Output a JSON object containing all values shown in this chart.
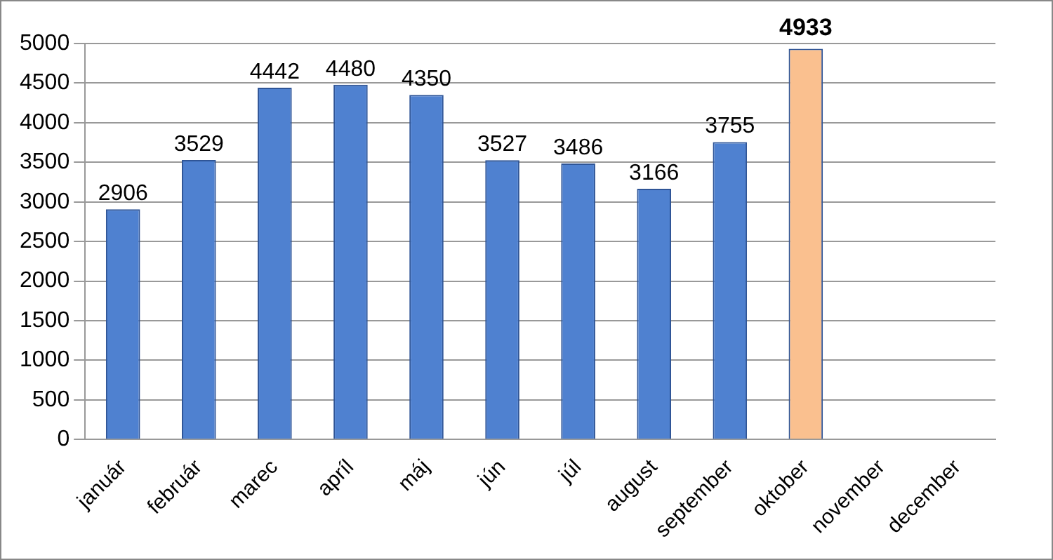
{
  "chart_data": {
    "type": "bar",
    "categories": [
      "január",
      "február",
      "marec",
      "apríl",
      "máj",
      "jún",
      "júl",
      "august",
      "september",
      "oktober",
      "november",
      "december"
    ],
    "values": [
      2906,
      3529,
      4442,
      4480,
      4350,
      3527,
      3486,
      3166,
      3755,
      4933,
      null,
      null
    ],
    "colors": [
      "#4f81d0",
      "#4f81d0",
      "#4f81d0",
      "#4f81d0",
      "#4f81d0",
      "#4f81d0",
      "#4f81d0",
      "#4f81d0",
      "#4f81d0",
      "#fac08f",
      "#4f81d0",
      "#4f81d0"
    ],
    "ylim": [
      0,
      5000
    ],
    "yticks": [
      0,
      500,
      1000,
      1500,
      2000,
      2500,
      3000,
      3500,
      4000,
      4500,
      5000
    ],
    "grid": "y",
    "legend": false,
    "data_labels": true
  }
}
